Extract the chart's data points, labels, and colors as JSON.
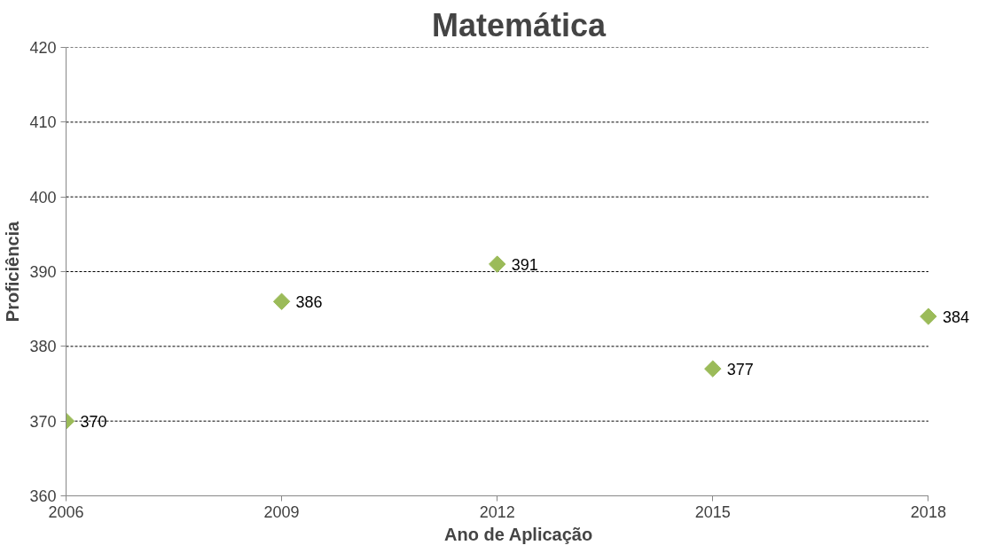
{
  "chart_data": {
    "type": "scatter",
    "title": "Matemática",
    "xlabel": "Ano de Aplicação",
    "ylabel": "Proficiência",
    "x": [
      2006,
      2009,
      2012,
      2015,
      2018
    ],
    "series": [
      {
        "color": "#9bbb59",
        "values": [
          370,
          386,
          391,
          377,
          384
        ]
      }
    ],
    "xlim": [
      2006,
      2018
    ],
    "xticks": [
      2006,
      2009,
      2012,
      2015,
      2018
    ],
    "ylim": [
      360,
      420
    ],
    "yticks": [
      360,
      370,
      380,
      390,
      400,
      410,
      420
    ],
    "grid": "y",
    "marker": "diamond",
    "data_labels": true
  }
}
